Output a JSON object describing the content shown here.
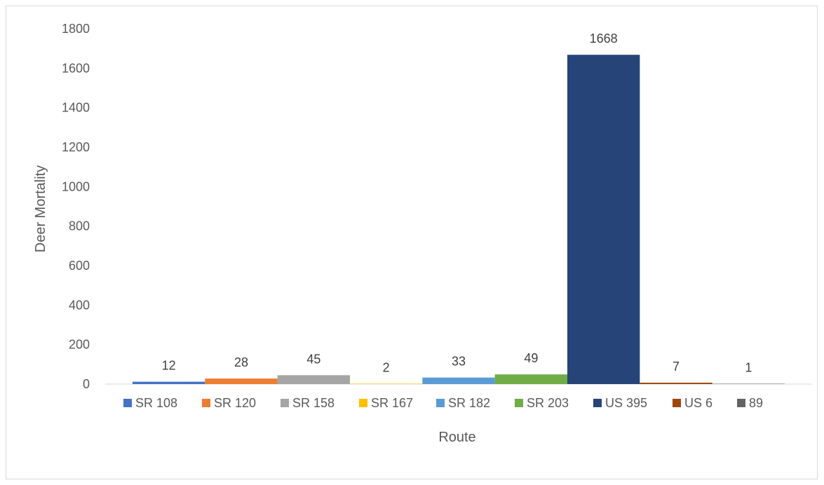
{
  "chart_data": {
    "type": "bar",
    "title": "",
    "xlabel": "Route",
    "ylabel": "Deer Mortality",
    "ylim": [
      0,
      1800
    ],
    "yticks": [
      0,
      200,
      400,
      600,
      800,
      1000,
      1200,
      1400,
      1600,
      1800
    ],
    "grid": false,
    "legend_position": "bottom",
    "data_labels": true,
    "series": [
      {
        "name": "SR 108",
        "value": 12,
        "color": "#4472C4"
      },
      {
        "name": "SR 120",
        "value": 28,
        "color": "#ED7D31"
      },
      {
        "name": "SR 158",
        "value": 45,
        "color": "#A5A5A5"
      },
      {
        "name": "SR 167",
        "value": 2,
        "color": "#FFC000"
      },
      {
        "name": "SR 182",
        "value": 33,
        "color": "#5B9BD5"
      },
      {
        "name": "SR 203",
        "value": 49,
        "color": "#70AD47"
      },
      {
        "name": "US 395",
        "value": 1668,
        "color": "#264478"
      },
      {
        "name": "US 6",
        "value": 7,
        "color": "#9E480E"
      },
      {
        "name": "89",
        "value": 1,
        "color": "#636363"
      }
    ]
  }
}
